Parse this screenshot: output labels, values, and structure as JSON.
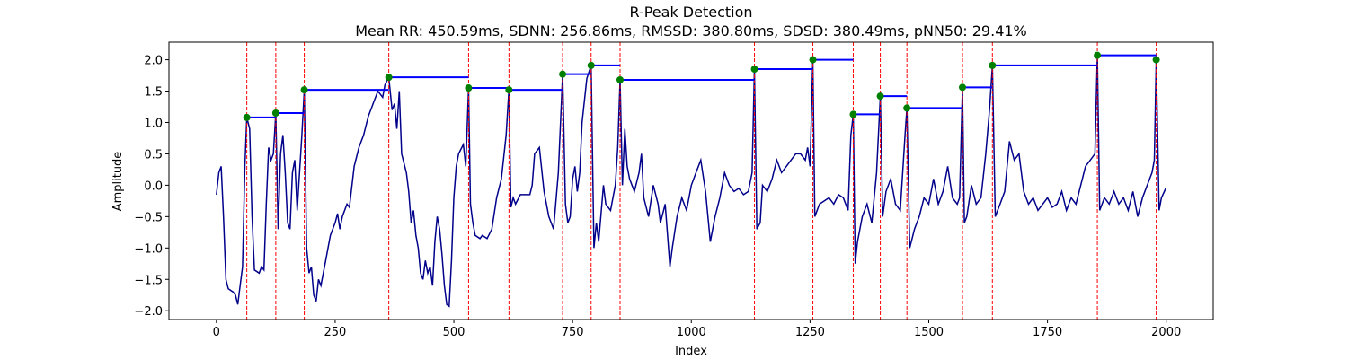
{
  "chart_data": {
    "type": "line",
    "title": "R-Peak Detection",
    "subtitle": "Mean RR: 450.59ms, SDNN: 256.86ms, RMSSD: 380.80ms, SDSD: 380.49ms, pNN50: 29.41%",
    "xlabel": "Index",
    "ylabel": "Amplitude",
    "color": "#00008b",
    "xlim": [
      -99.95,
      2098.95
    ],
    "ylim": [
      -2.14,
      2.28
    ],
    "xticks": [
      0,
      250,
      500,
      750,
      1000,
      1250,
      1500,
      1750,
      2000
    ],
    "yticks": [
      {
        "value": -2,
        "label": "−2.0"
      },
      {
        "value": -1.5,
        "label": "−1.5"
      },
      {
        "value": -1,
        "label": "−1.0"
      },
      {
        "value": -0.5,
        "label": "−0.5"
      },
      {
        "value": 0,
        "label": "0.0"
      },
      {
        "value": 0.5,
        "label": "0.5"
      },
      {
        "value": 1,
        "label": "1.0"
      },
      {
        "value": 1.5,
        "label": "1.5"
      },
      {
        "value": 2,
        "label": "2.0"
      }
    ],
    "x": [
      0,
      5,
      10,
      15,
      20,
      25,
      35,
      40,
      45,
      50,
      55,
      60,
      64,
      70,
      75,
      80,
      90,
      95,
      100,
      105,
      110,
      115,
      120,
      125,
      130,
      135,
      140,
      145,
      150,
      155,
      160,
      165,
      170,
      180,
      185,
      190,
      195,
      200,
      205,
      210,
      215,
      220,
      230,
      240,
      250,
      255,
      260,
      265,
      275,
      280,
      290,
      300,
      310,
      320,
      330,
      340,
      350,
      355,
      363,
      370,
      375,
      380,
      385,
      390,
      400,
      405,
      410,
      415,
      420,
      425,
      430,
      435,
      440,
      445,
      450,
      455,
      460,
      465,
      470,
      475,
      480,
      485,
      490,
      495,
      500,
      505,
      510,
      520,
      525,
      531,
      535,
      540,
      545,
      555,
      560,
      570,
      580,
      590,
      600,
      610,
      616,
      620,
      625,
      630,
      640,
      660,
      665,
      670,
      680,
      690,
      700,
      710,
      720,
      729,
      735,
      740,
      745,
      750,
      755,
      760,
      765,
      770,
      780,
      789,
      795,
      800,
      805,
      815,
      820,
      830,
      840,
      845,
      850,
      855,
      860,
      865,
      870,
      880,
      890,
      895,
      900,
      910,
      920,
      930,
      935,
      945,
      955,
      960,
      970,
      980,
      990,
      1000,
      1010,
      1020,
      1030,
      1040,
      1050,
      1060,
      1070,
      1080,
      1090,
      1100,
      1110,
      1120,
      1128,
      1133,
      1138,
      1145,
      1150,
      1160,
      1170,
      1180,
      1190,
      1200,
      1210,
      1220,
      1230,
      1240,
      1245,
      1250,
      1256,
      1260,
      1270,
      1280,
      1290,
      1300,
      1310,
      1320,
      1330,
      1336,
      1341,
      1345,
      1350,
      1360,
      1370,
      1380,
      1390,
      1398,
      1403,
      1410,
      1420,
      1430,
      1440,
      1450,
      1454,
      1460,
      1470,
      1480,
      1490,
      1500,
      1510,
      1520,
      1530,
      1540,
      1550,
      1560,
      1565,
      1571,
      1575,
      1580,
      1590,
      1600,
      1610,
      1620,
      1628,
      1634,
      1640,
      1650,
      1660,
      1670,
      1680,
      1690,
      1700,
      1710,
      1720,
      1730,
      1740,
      1750,
      1760,
      1770,
      1780,
      1790,
      1800,
      1810,
      1820,
      1830,
      1840,
      1850,
      1855,
      1860,
      1870,
      1880,
      1890,
      1900,
      1910,
      1920,
      1930,
      1940,
      1950,
      1960,
      1970,
      1975,
      1979,
      1985,
      1990,
      1999
    ],
    "values": [
      -0.15,
      0.2,
      0.3,
      -0.5,
      -1.5,
      -1.65,
      -1.7,
      -1.75,
      -1.9,
      -1.6,
      -1.3,
      0.3,
      1.08,
      0.9,
      -0.5,
      -1.35,
      -1.4,
      -1.3,
      -1.35,
      -0.3,
      0.6,
      0.4,
      0.5,
      1.15,
      -0.7,
      0.5,
      0.8,
      0.2,
      -0.6,
      -0.7,
      0.2,
      0.4,
      -0.4,
      0.8,
      1.52,
      -1.0,
      -1.4,
      -1.3,
      -1.75,
      -1.85,
      -1.5,
      -1.6,
      -1.2,
      -0.8,
      -0.6,
      -0.45,
      -0.7,
      -0.5,
      -0.3,
      -0.35,
      0.3,
      0.6,
      0.8,
      1.1,
      1.3,
      1.5,
      1.4,
      1.6,
      1.72,
      1.2,
      1.3,
      0.9,
      1.5,
      0.5,
      0.2,
      -0.1,
      -0.6,
      -0.4,
      -0.8,
      -1.0,
      -1.4,
      -1.5,
      -1.2,
      -1.4,
      -1.3,
      -1.6,
      -0.9,
      -0.5,
      -0.7,
      -1.1,
      -1.6,
      -1.9,
      -1.93,
      -1.2,
      -0.2,
      0.3,
      0.5,
      0.65,
      0.3,
      1.55,
      -0.3,
      -0.6,
      -0.8,
      -0.85,
      -0.8,
      -0.85,
      -0.7,
      -0.2,
      0.1,
      0.8,
      1.52,
      -0.35,
      -0.2,
      -0.3,
      -0.15,
      -0.15,
      0.0,
      0.5,
      0.6,
      -0.1,
      -0.5,
      -0.7,
      0.2,
      1.77,
      -0.3,
      -0.6,
      -0.5,
      0.1,
      0.3,
      -0.1,
      0.2,
      1.0,
      1.7,
      1.91,
      -1.0,
      -0.6,
      -0.9,
      0.0,
      -0.3,
      -0.4,
      0.0,
      0.6,
      1.68,
      0.0,
      0.9,
      0.3,
      0.1,
      -0.1,
      0.2,
      0.5,
      -0.2,
      -0.5,
      0.0,
      -0.3,
      -0.6,
      -0.3,
      -1.3,
      -1.0,
      -0.5,
      -0.2,
      -0.4,
      0.0,
      0.2,
      0.4,
      -0.1,
      -0.9,
      -0.5,
      -0.2,
      0.2,
      0.0,
      -0.1,
      -0.05,
      -0.15,
      -0.1,
      0.2,
      1.85,
      -0.7,
      -0.6,
      0.0,
      -0.1,
      0.1,
      0.4,
      0.2,
      0.3,
      0.4,
      0.5,
      0.5,
      0.4,
      0.6,
      0.3,
      2.0,
      -0.5,
      -0.3,
      -0.25,
      -0.2,
      -0.3,
      -0.15,
      -0.2,
      -0.4,
      0.8,
      1.13,
      -1.25,
      -0.9,
      -0.5,
      -0.3,
      -0.6,
      0.2,
      1.42,
      -0.5,
      -0.1,
      0.1,
      -0.3,
      -0.4,
      0.8,
      1.23,
      -1.0,
      -0.7,
      -0.5,
      -0.2,
      -0.3,
      0.1,
      -0.3,
      -0.1,
      0.3,
      -0.2,
      -0.3,
      -0.2,
      1.56,
      -0.6,
      -0.5,
      0.0,
      -0.3,
      -0.2,
      0.5,
      1.2,
      1.91,
      -0.5,
      -0.3,
      -0.1,
      0.7,
      0.4,
      0.5,
      -0.1,
      -0.3,
      -0.2,
      -0.4,
      -0.3,
      -0.2,
      -0.35,
      -0.3,
      -0.1,
      -0.4,
      -0.2,
      -0.3,
      0.0,
      0.3,
      0.4,
      0.5,
      2.07,
      -0.4,
      -0.2,
      -0.3,
      -0.1,
      -0.3,
      -0.2,
      -0.4,
      -0.1,
      -0.5,
      -0.2,
      0.0,
      0.2,
      0.4,
      2.0,
      -0.4,
      -0.2,
      -0.05
    ],
    "peaks": {
      "x": [
        64,
        125,
        185,
        363,
        531,
        616,
        729,
        789,
        850,
        1133,
        1256,
        1341,
        1398,
        1454,
        1571,
        1634,
        1855,
        1979
      ],
      "values": [
        1.08,
        1.15,
        1.52,
        1.72,
        1.55,
        1.52,
        1.77,
        1.91,
        1.68,
        1.85,
        2.0,
        1.13,
        1.42,
        1.23,
        1.56,
        1.91,
        2.07,
        2.0
      ],
      "color": "green",
      "line_color": "red",
      "interval_color": "blue"
    }
  }
}
